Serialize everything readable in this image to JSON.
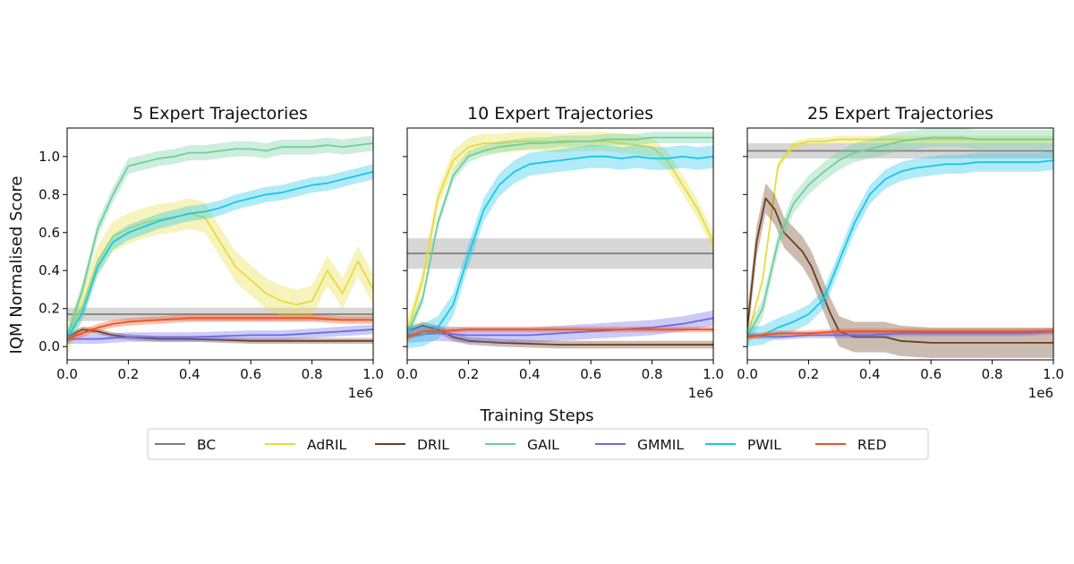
{
  "figure": {
    "ylabel": "IQM Normalised Score",
    "xlabel": "Training Steps",
    "x_exponent": "1e6"
  },
  "legend": {
    "placement": "bottom-center",
    "entries": [
      "BC",
      "AdRIL",
      "DRIL",
      "GAIL",
      "GMMIL",
      "PWIL",
      "RED"
    ]
  },
  "colors": {
    "BC": "#7f7f7f",
    "AdRIL": "#e5dc3f",
    "DRIL": "#6b3e1f",
    "GAIL": "#6fcf9c",
    "GMMIL": "#6a6be8",
    "PWIL": "#1cc6e8",
    "RED": "#f0501e"
  },
  "chart_data": [
    {
      "type": "line",
      "title": "5 Expert Trajectories",
      "xlim": [
        0,
        1000000
      ],
      "ylim": [
        -0.07,
        1.15
      ],
      "xticks": [
        "0.0",
        "0.2",
        "0.4",
        "0.6",
        "0.8",
        "1.0"
      ],
      "yticks": [
        "0.0",
        "0.2",
        "0.4",
        "0.6",
        "0.8",
        "1.0"
      ],
      "grid": false,
      "series": [
        {
          "name": "BC",
          "x": [
            0,
            1000000
          ],
          "y": [
            0.17,
            0.17
          ],
          "band": 0.035
        },
        {
          "name": "AdRIL",
          "x": [
            0,
            50000,
            100000,
            150000,
            200000,
            250000,
            300000,
            350000,
            400000,
            450000,
            500000,
            550000,
            600000,
            650000,
            700000,
            750000,
            800000,
            850000,
            900000,
            950000,
            1000000
          ],
          "y": [
            0.03,
            0.22,
            0.45,
            0.58,
            0.62,
            0.65,
            0.67,
            0.68,
            0.7,
            0.68,
            0.55,
            0.42,
            0.35,
            0.28,
            0.24,
            0.22,
            0.24,
            0.4,
            0.28,
            0.45,
            0.3
          ],
          "band": 0.08
        },
        {
          "name": "DRIL",
          "x": [
            0,
            50000,
            100000,
            150000,
            200000,
            300000,
            400000,
            500000,
            600000,
            700000,
            800000,
            900000,
            1000000
          ],
          "y": [
            0.05,
            0.09,
            0.08,
            0.06,
            0.05,
            0.04,
            0.04,
            0.035,
            0.03,
            0.03,
            0.03,
            0.03,
            0.03
          ],
          "band": 0.015
        },
        {
          "name": "GAIL",
          "x": [
            0,
            50000,
            100000,
            150000,
            200000,
            250000,
            300000,
            350000,
            400000,
            450000,
            500000,
            550000,
            600000,
            650000,
            700000,
            750000,
            800000,
            850000,
            900000,
            950000,
            1000000
          ],
          "y": [
            0.05,
            0.3,
            0.62,
            0.8,
            0.95,
            0.97,
            0.99,
            1.0,
            1.02,
            1.02,
            1.03,
            1.04,
            1.04,
            1.03,
            1.05,
            1.05,
            1.05,
            1.06,
            1.05,
            1.06,
            1.07
          ],
          "band": 0.04
        },
        {
          "name": "GMMIL",
          "x": [
            0,
            100000,
            200000,
            300000,
            400000,
            500000,
            600000,
            700000,
            800000,
            900000,
            1000000
          ],
          "y": [
            0.04,
            0.04,
            0.05,
            0.05,
            0.05,
            0.055,
            0.06,
            0.06,
            0.07,
            0.08,
            0.09
          ],
          "band": 0.025
        },
        {
          "name": "PWIL",
          "x": [
            0,
            50000,
            100000,
            150000,
            200000,
            250000,
            300000,
            350000,
            400000,
            450000,
            500000,
            550000,
            600000,
            650000,
            700000,
            750000,
            800000,
            850000,
            900000,
            950000,
            1000000
          ],
          "y": [
            0.04,
            0.18,
            0.42,
            0.55,
            0.6,
            0.63,
            0.66,
            0.68,
            0.7,
            0.71,
            0.73,
            0.76,
            0.78,
            0.8,
            0.81,
            0.83,
            0.85,
            0.86,
            0.88,
            0.9,
            0.92
          ],
          "band": 0.04
        },
        {
          "name": "RED",
          "x": [
            0,
            50000,
            100000,
            150000,
            200000,
            300000,
            400000,
            500000,
            600000,
            700000,
            800000,
            900000,
            1000000
          ],
          "y": [
            0.04,
            0.07,
            0.1,
            0.12,
            0.13,
            0.14,
            0.15,
            0.15,
            0.15,
            0.15,
            0.15,
            0.14,
            0.14
          ],
          "band": 0.02
        }
      ]
    },
    {
      "type": "line",
      "title": "10 Expert Trajectories",
      "xlim": [
        0,
        1000000
      ],
      "ylim": [
        -0.07,
        1.15
      ],
      "xticks": [
        "0.0",
        "0.2",
        "0.4",
        "0.6",
        "0.8",
        "1.0"
      ],
      "yticks": [
        "0.0",
        "0.2",
        "0.4",
        "0.6",
        "0.8",
        "1.0"
      ],
      "grid": false,
      "series": [
        {
          "name": "BC",
          "x": [
            0,
            1000000
          ],
          "y": [
            0.49,
            0.49
          ],
          "band": 0.08
        },
        {
          "name": "AdRIL",
          "x": [
            0,
            50000,
            100000,
            150000,
            200000,
            250000,
            300000,
            350000,
            400000,
            450000,
            500000,
            550000,
            600000,
            650000,
            700000,
            750000,
            800000,
            850000,
            900000,
            950000,
            1000000
          ],
          "y": [
            0.08,
            0.35,
            0.78,
            0.98,
            1.05,
            1.07,
            1.07,
            1.08,
            1.08,
            1.08,
            1.07,
            1.08,
            1.08,
            1.08,
            1.07,
            1.06,
            1.05,
            0.98,
            0.85,
            0.72,
            0.55
          ],
          "band": 0.05
        },
        {
          "name": "DRIL",
          "x": [
            0,
            50000,
            100000,
            150000,
            200000,
            300000,
            400000,
            500000,
            600000,
            700000,
            800000,
            900000,
            1000000
          ],
          "y": [
            0.08,
            0.11,
            0.09,
            0.05,
            0.03,
            0.02,
            0.015,
            0.01,
            0.01,
            0.01,
            0.01,
            0.01,
            0.01
          ],
          "band": 0.02
        },
        {
          "name": "GAIL",
          "x": [
            0,
            50000,
            100000,
            150000,
            200000,
            250000,
            300000,
            350000,
            400000,
            450000,
            500000,
            550000,
            600000,
            650000,
            700000,
            750000,
            800000,
            850000,
            900000,
            950000,
            1000000
          ],
          "y": [
            0.06,
            0.25,
            0.65,
            0.9,
            1.0,
            1.03,
            1.05,
            1.06,
            1.07,
            1.07,
            1.08,
            1.08,
            1.08,
            1.09,
            1.09,
            1.09,
            1.1,
            1.1,
            1.1,
            1.1,
            1.1
          ],
          "band": 0.03
        },
        {
          "name": "GMMIL",
          "x": [
            0,
            100000,
            200000,
            300000,
            400000,
            500000,
            600000,
            700000,
            800000,
            900000,
            1000000
          ],
          "y": [
            0.06,
            0.07,
            0.06,
            0.06,
            0.06,
            0.07,
            0.08,
            0.09,
            0.1,
            0.12,
            0.15
          ],
          "band": 0.04
        },
        {
          "name": "PWIL",
          "x": [
            0,
            50000,
            100000,
            150000,
            200000,
            250000,
            300000,
            350000,
            400000,
            450000,
            500000,
            550000,
            600000,
            650000,
            700000,
            750000,
            800000,
            850000,
            900000,
            950000,
            1000000
          ],
          "y": [
            0.05,
            0.06,
            0.1,
            0.22,
            0.48,
            0.72,
            0.85,
            0.92,
            0.96,
            0.97,
            0.98,
            0.99,
            1.0,
            1.0,
            0.99,
            1.0,
            0.99,
            0.99,
            1.0,
            0.99,
            1.0
          ],
          "band": 0.06
        },
        {
          "name": "RED",
          "x": [
            0,
            50000,
            100000,
            200000,
            300000,
            400000,
            500000,
            600000,
            700000,
            800000,
            900000,
            1000000
          ],
          "y": [
            0.05,
            0.08,
            0.08,
            0.09,
            0.09,
            0.09,
            0.09,
            0.09,
            0.09,
            0.09,
            0.09,
            0.09
          ],
          "band": 0.015
        }
      ]
    },
    {
      "type": "line",
      "title": "25 Expert Trajectories",
      "xlim": [
        0,
        1000000
      ],
      "ylim": [
        -0.07,
        1.15
      ],
      "xticks": [
        "0.0",
        "0.2",
        "0.4",
        "0.6",
        "0.8",
        "1.0"
      ],
      "yticks": [
        "0.0",
        "0.2",
        "0.4",
        "0.6",
        "0.8",
        "1.0"
      ],
      "grid": false,
      "series": [
        {
          "name": "BC",
          "x": [
            0,
            1000000
          ],
          "y": [
            1.03,
            1.03
          ],
          "band": 0.04
        },
        {
          "name": "AdRIL",
          "x": [
            0,
            50000,
            100000,
            150000,
            200000,
            250000,
            300000,
            350000,
            400000,
            450000,
            500000,
            550000,
            600000,
            650000,
            700000,
            750000,
            800000,
            850000,
            900000,
            950000,
            1000000
          ],
          "y": [
            0.05,
            0.35,
            0.95,
            1.06,
            1.08,
            1.08,
            1.09,
            1.09,
            1.09,
            1.09,
            1.09,
            1.09,
            1.09,
            1.09,
            1.09,
            1.09,
            1.09,
            1.09,
            1.09,
            1.09,
            1.09
          ],
          "band": 0.02
        },
        {
          "name": "DRIL",
          "x": [
            0,
            30000,
            60000,
            90000,
            120000,
            150000,
            180000,
            210000,
            240000,
            270000,
            300000,
            350000,
            400000,
            450000,
            500000,
            600000,
            700000,
            800000,
            900000,
            1000000
          ],
          "y": [
            0.1,
            0.55,
            0.78,
            0.72,
            0.6,
            0.55,
            0.5,
            0.42,
            0.3,
            0.18,
            0.08,
            0.05,
            0.05,
            0.05,
            0.03,
            0.02,
            0.02,
            0.02,
            0.02,
            0.02
          ],
          "band": 0.08
        },
        {
          "name": "GAIL",
          "x": [
            0,
            50000,
            100000,
            150000,
            200000,
            250000,
            300000,
            350000,
            400000,
            450000,
            500000,
            550000,
            600000,
            650000,
            700000,
            750000,
            800000,
            850000,
            900000,
            950000,
            1000000
          ],
          "y": [
            0.05,
            0.2,
            0.55,
            0.75,
            0.85,
            0.92,
            0.98,
            1.02,
            1.04,
            1.06,
            1.08,
            1.09,
            1.1,
            1.1,
            1.1,
            1.09,
            1.09,
            1.09,
            1.09,
            1.09,
            1.09
          ],
          "band": 0.05
        },
        {
          "name": "GMMIL",
          "x": [
            0,
            100000,
            200000,
            300000,
            400000,
            500000,
            600000,
            700000,
            800000,
            900000,
            1000000
          ],
          "y": [
            0.06,
            0.05,
            0.06,
            0.06,
            0.06,
            0.07,
            0.07,
            0.07,
            0.07,
            0.07,
            0.08
          ],
          "band": 0.015
        },
        {
          "name": "PWIL",
          "x": [
            0,
            50000,
            100000,
            150000,
            200000,
            250000,
            300000,
            350000,
            400000,
            450000,
            500000,
            550000,
            600000,
            650000,
            700000,
            750000,
            800000,
            850000,
            900000,
            950000,
            1000000
          ],
          "y": [
            0.05,
            0.06,
            0.1,
            0.13,
            0.17,
            0.25,
            0.45,
            0.65,
            0.8,
            0.88,
            0.92,
            0.94,
            0.95,
            0.96,
            0.96,
            0.97,
            0.97,
            0.97,
            0.97,
            0.97,
            0.98
          ],
          "band": 0.05
        },
        {
          "name": "RED",
          "x": [
            0,
            50000,
            100000,
            200000,
            300000,
            400000,
            500000,
            600000,
            700000,
            800000,
            900000,
            1000000
          ],
          "y": [
            0.05,
            0.06,
            0.07,
            0.07,
            0.08,
            0.08,
            0.08,
            0.08,
            0.08,
            0.08,
            0.08,
            0.08
          ],
          "band": 0.015
        }
      ]
    }
  ]
}
